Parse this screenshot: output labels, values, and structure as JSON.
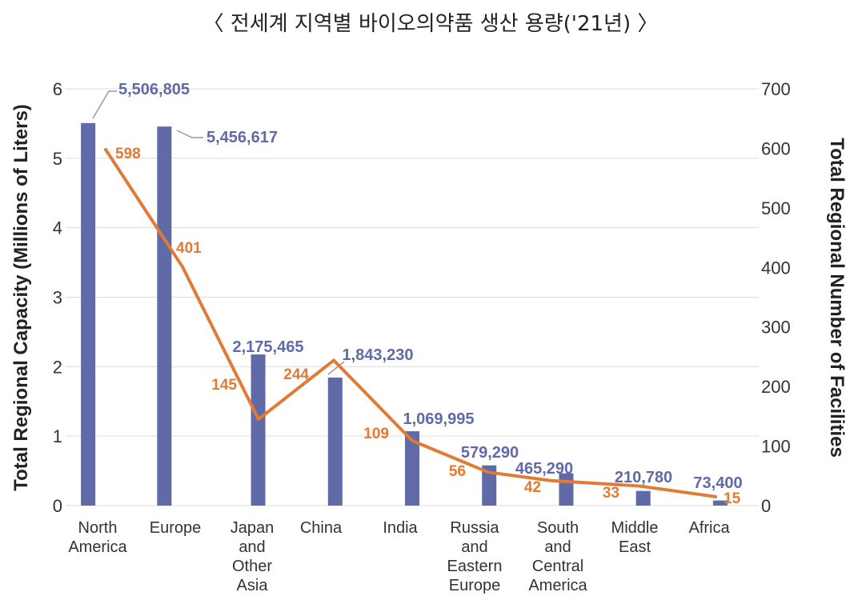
{
  "title": "〈 전세계 지역별 바이오의약품 생산 용량('21년) 〉",
  "chart_data": {
    "type": "bar",
    "title": "〈 전세계 지역별 바이오의약품 생산 용량('21년) 〉",
    "categories": [
      [
        "North",
        "America"
      ],
      [
        "Europe"
      ],
      [
        "Japan",
        "and",
        "Other",
        "Asia"
      ],
      [
        "China"
      ],
      [
        "India"
      ],
      [
        "Russia",
        "and",
        "Eastern",
        "Europe"
      ],
      [
        "South",
        "and",
        "Central",
        "America"
      ],
      [
        "Middle",
        "East"
      ],
      [
        "Africa"
      ]
    ],
    "ylabel": "Total Regional Capacity (Millions of Liters)",
    "y2label": "Total Regional Number of Facilities",
    "ylim": [
      0,
      6
    ],
    "y2lim": [
      0,
      700
    ],
    "yticks": [
      "0",
      "1",
      "2",
      "3",
      "4",
      "5",
      "6"
    ],
    "y2ticks": [
      "0",
      "100",
      "200",
      "300",
      "400",
      "500",
      "600",
      "700"
    ],
    "grid": true,
    "series": [
      {
        "type": "bar",
        "axis": "left",
        "values": [
          5.506805,
          5.456617,
          2.175465,
          1.84323,
          1.069995,
          0.57929,
          0.46529,
          0.21078,
          0.0734
        ],
        "labels": [
          "5,506,805",
          "5,456,617",
          "2,175,465",
          "1,843,230",
          "1,069,995",
          "579,290",
          "465,290",
          "210,780",
          "73,400"
        ],
        "color": "#5f6aa6"
      },
      {
        "type": "line",
        "axis": "right",
        "values": [
          598,
          401,
          145,
          244,
          109,
          56,
          42,
          33,
          15
        ],
        "labels": [
          "598",
          "401",
          "145",
          "244",
          "109",
          "56",
          "42",
          "33",
          "15"
        ],
        "color": "#e07a35"
      }
    ]
  }
}
